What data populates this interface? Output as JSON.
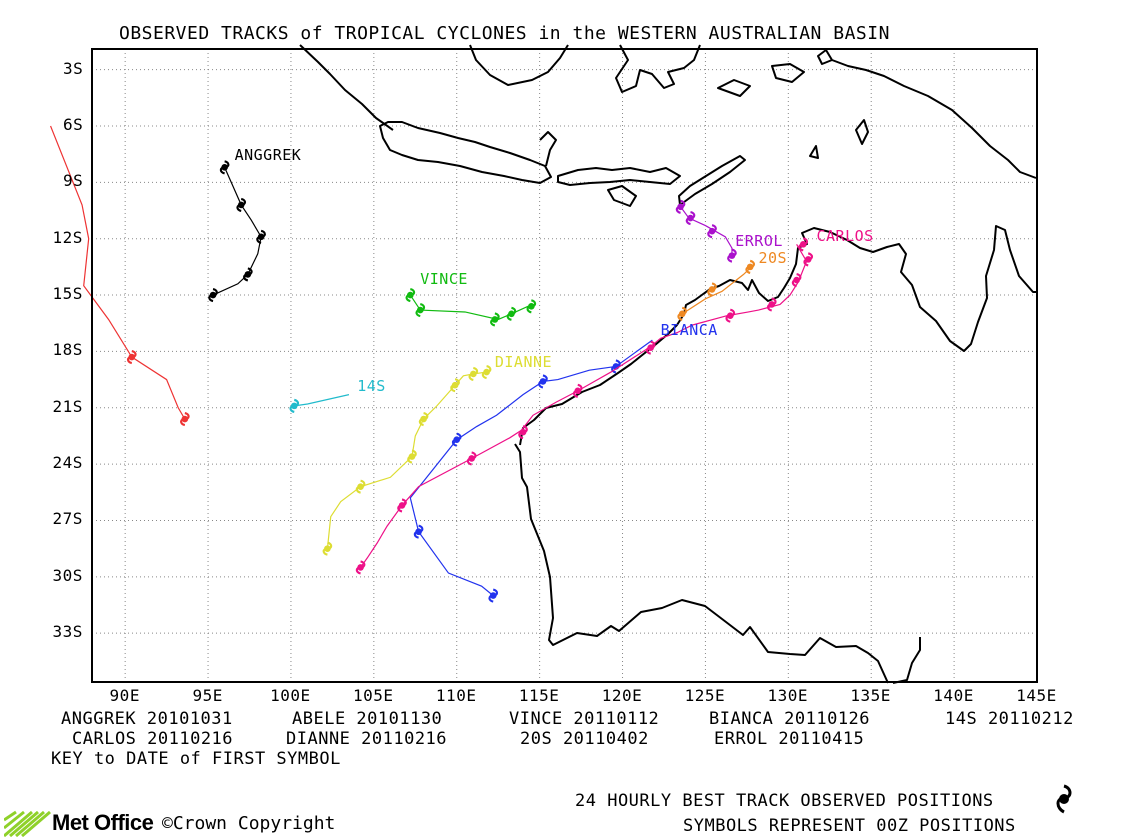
{
  "title": "OBSERVED TRACKS of TROPICAL CYCLONES in the WESTERN AUSTRALIAN BASIN",
  "lat_labels": [
    "3S",
    "6S",
    "9S",
    "12S",
    "15S",
    "18S",
    "21S",
    "24S",
    "27S",
    "30S",
    "33S"
  ],
  "lon_labels": [
    "90E",
    "95E",
    "100E",
    "105E",
    "110E",
    "115E",
    "120E",
    "125E",
    "130E",
    "135E",
    "140E",
    "145E"
  ],
  "storm_labels": {
    "anggrek": "ANGGREK",
    "vince": "VINCE",
    "dianne": "DIANNE",
    "s14": "14S",
    "bianca": "BIANCA",
    "errol": "ERROL",
    "s20": "20S",
    "carlos": "CARLOS"
  },
  "key": {
    "row1": [
      "ANGGREK 20101031",
      "ABELE 20101130",
      "VINCE 20110112",
      "BIANCA 20110126",
      "14S 20110212"
    ],
    "row2": [
      "CARLOS 20110216",
      "DIANNE 20110216",
      "20S 20110402",
      "ERROL 20110415"
    ],
    "caption": "KEY to DATE of FIRST SYMBOL"
  },
  "footer": {
    "line1": "24 HOURLY BEST TRACK OBSERVED POSITIONS",
    "line2": "SYMBOLS REPRESENT 00Z POSITIONS",
    "brand": "Met Office",
    "copyright": "©Crown Copyright"
  },
  "colors": {
    "anggrek": "#000000",
    "abele": "#ee3333",
    "vince": "#11bb11",
    "dianne": "#dddd33",
    "s14": "#22bbcc",
    "bianca": "#2233ee",
    "carlos": "#ee1188",
    "errol": "#aa11cc",
    "s20": "#ee8822"
  },
  "chart_data": {
    "type": "map",
    "lon_range": [
      88,
      145
    ],
    "lat_range": [
      -1.9,
      -35.6
    ],
    "grid": true,
    "tracks": [
      {
        "name": "ANGGREK",
        "color_key": "anggrek",
        "points": [
          [
            96,
            -8.2
          ],
          [
            96.5,
            -9.2
          ],
          [
            97,
            -10.2
          ],
          [
            97.6,
            -11
          ],
          [
            98.2,
            -11.9
          ],
          [
            98,
            -12.8
          ],
          [
            97.4,
            -13.9
          ],
          [
            96.8,
            -14.4
          ],
          [
            95.3,
            -15
          ]
        ],
        "symbols": [
          [
            96,
            -8.2
          ],
          [
            97,
            -10.2
          ],
          [
            98.2,
            -11.9
          ],
          [
            97.4,
            -13.9
          ],
          [
            95.3,
            -15
          ]
        ]
      },
      {
        "name": "",
        "color_key": "abele",
        "points": [
          [
            85.5,
            -6
          ],
          [
            87.4,
            -10.2
          ],
          [
            87.8,
            -12
          ],
          [
            87.5,
            -14.5
          ],
          [
            89,
            -16.3
          ],
          [
            90.4,
            -18.3
          ],
          [
            92.5,
            -19.5
          ],
          [
            93.2,
            -21
          ],
          [
            93.6,
            -21.6
          ]
        ],
        "symbols": [
          [
            90.4,
            -18.3
          ],
          [
            93.6,
            -21.6
          ]
        ]
      },
      {
        "name": "VINCE",
        "color_key": "vince",
        "points": [
          [
            107.2,
            -15
          ],
          [
            107.8,
            -15.8
          ],
          [
            110.5,
            -15.9
          ],
          [
            112.5,
            -16.3
          ],
          [
            113.3,
            -16
          ],
          [
            114.3,
            -15.6
          ],
          [
            114.7,
            -15.5
          ]
        ],
        "symbols": [
          [
            107.2,
            -15
          ],
          [
            107.8,
            -15.8
          ],
          [
            112.3,
            -16.3
          ],
          [
            113.3,
            -16
          ],
          [
            114.5,
            -15.6
          ]
        ]
      },
      {
        "name": "DIANNE",
        "color_key": "dianne",
        "points": [
          [
            111.8,
            -19.1
          ],
          [
            111,
            -19.2
          ],
          [
            110.4,
            -19.3
          ],
          [
            109.9,
            -19.8
          ],
          [
            108.8,
            -20.9
          ],
          [
            108,
            -21.6
          ],
          [
            107.5,
            -22.5
          ],
          [
            107.3,
            -23.6
          ],
          [
            106,
            -24.7
          ],
          [
            104.2,
            -25.2
          ],
          [
            103,
            -26
          ],
          [
            102.4,
            -26.8
          ],
          [
            102.2,
            -28.5
          ]
        ],
        "symbols": [
          [
            111.8,
            -19.1
          ],
          [
            111,
            -19.2
          ],
          [
            109.9,
            -19.8
          ],
          [
            108,
            -21.6
          ],
          [
            107.3,
            -23.6
          ],
          [
            104.2,
            -25.2
          ],
          [
            102.2,
            -28.5
          ]
        ]
      },
      {
        "name": "14S",
        "color_key": "s14",
        "points": [
          [
            103.5,
            -20.3
          ],
          [
            101,
            -20.8
          ],
          [
            100.2,
            -20.9
          ]
        ],
        "symbols": [
          [
            100.2,
            -20.9
          ]
        ]
      },
      {
        "name": "BIANCA",
        "color_key": "bianca",
        "points": [
          [
            121.8,
            -17.4
          ],
          [
            119.6,
            -18.8
          ],
          [
            118,
            -19
          ],
          [
            116.1,
            -19.5
          ],
          [
            115.2,
            -19.6
          ],
          [
            114,
            -20.3
          ],
          [
            112.4,
            -21.4
          ],
          [
            111.2,
            -22
          ],
          [
            110,
            -22.7
          ],
          [
            107.2,
            -25.8
          ],
          [
            107.7,
            -27.6
          ],
          [
            109.5,
            -29.8
          ],
          [
            111.5,
            -30.5
          ],
          [
            112.2,
            -31
          ]
        ],
        "symbols": [
          [
            119.6,
            -18.8
          ],
          [
            115.2,
            -19.6
          ],
          [
            110,
            -22.7
          ],
          [
            107.7,
            -27.6
          ],
          [
            112.2,
            -31
          ]
        ]
      },
      {
        "name": "CARLOS",
        "color_key": "carlos",
        "points": [
          [
            130.5,
            -12.3
          ],
          [
            131.1,
            -13.2
          ],
          [
            130.6,
            -14.3
          ],
          [
            130.1,
            -15
          ],
          [
            129.5,
            -15.5
          ],
          [
            128.2,
            -15.8
          ],
          [
            127.6,
            -15.9
          ],
          [
            126.3,
            -16.1
          ],
          [
            124.2,
            -16.6
          ],
          [
            123.3,
            -17
          ],
          [
            122.3,
            -17.3
          ],
          [
            121.6,
            -17.8
          ],
          [
            119.3,
            -19.1
          ],
          [
            117.3,
            -20.1
          ],
          [
            116,
            -20.7
          ],
          [
            114.6,
            -21.4
          ],
          [
            113.9,
            -22.2
          ],
          [
            113.2,
            -22.6
          ],
          [
            110.9,
            -23.7
          ],
          [
            107.7,
            -25.2
          ],
          [
            106.7,
            -26.2
          ],
          [
            105.8,
            -27.3
          ],
          [
            105.2,
            -28.2
          ],
          [
            104.6,
            -29
          ],
          [
            104.2,
            -29.5
          ]
        ],
        "symbols": [
          [
            130.9,
            -12.3
          ],
          [
            131.2,
            -13.1
          ],
          [
            130.5,
            -14.2
          ],
          [
            129,
            -15.5
          ],
          [
            126.5,
            -16.1
          ],
          [
            121.7,
            -17.8
          ],
          [
            117.3,
            -20.1
          ],
          [
            114,
            -22.3
          ],
          [
            110.9,
            -23.7
          ],
          [
            106.7,
            -26.2
          ],
          [
            104.2,
            -29.5
          ]
        ]
      },
      {
        "name": "ERROL",
        "color_key": "errol",
        "points": [
          [
            123.5,
            -10.3
          ],
          [
            124,
            -10.9
          ],
          [
            125,
            -11.3
          ],
          [
            126.2,
            -11.9
          ],
          [
            126.6,
            -12.5
          ],
          [
            126.6,
            -13
          ]
        ],
        "symbols": [
          [
            123.5,
            -10.3
          ],
          [
            124.1,
            -10.9
          ],
          [
            125.4,
            -11.6
          ],
          [
            126.6,
            -12.9
          ]
        ]
      },
      {
        "name": "20S",
        "color_key": "s20",
        "points": [
          [
            127.9,
            -13.4
          ],
          [
            127.3,
            -13.9
          ],
          [
            126,
            -14.8
          ],
          [
            125,
            -15.2
          ],
          [
            123.6,
            -16
          ]
        ],
        "symbols": [
          [
            127.7,
            -13.5
          ],
          [
            125.4,
            -14.7
          ],
          [
            123.6,
            -16
          ]
        ]
      }
    ],
    "storm_label_positions": {
      "anggrek": [
        96.6,
        -7.6
      ],
      "vince": [
        107.8,
        -14.2
      ],
      "dianne": [
        112.3,
        -18.6
      ],
      "s14": [
        104,
        -19.9
      ],
      "bianca": [
        122.3,
        -16.9
      ],
      "errol": [
        126.8,
        -12.2
      ],
      "s20": [
        128.2,
        -13.1
      ],
      "carlos": [
        131.7,
        -11.9
      ]
    }
  }
}
